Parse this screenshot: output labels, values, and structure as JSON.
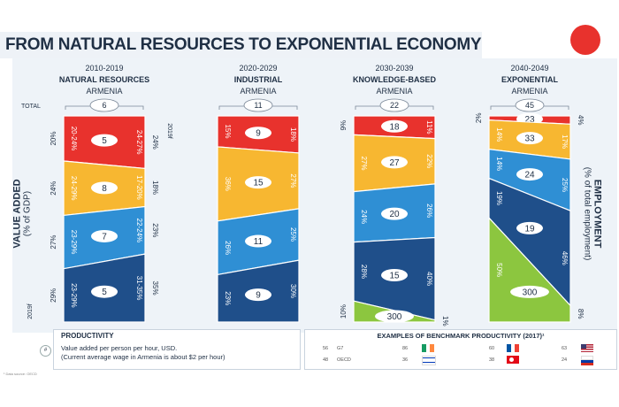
{
  "title": "FROM NATURAL RESOURCES TO EXPONENTIAL ECONOMY",
  "left_axis": {
    "title": "VALUE ADDED",
    "subtitle": "(% of GDP)",
    "year_bottom": "2019f"
  },
  "right_axis": {
    "title": "EMPLOYMENT",
    "subtitle": "(% of total employment)"
  },
  "total_label": "TOTAL",
  "chart_data": {
    "type": "bar",
    "colors": {
      "red": "#e8322d",
      "yellow": "#f7b731",
      "lightblue": "#2f8fd4",
      "darkblue": "#1f4f8a",
      "green": "#8cc63f"
    },
    "columns": [
      {
        "period": "2010-2019",
        "name": "NATURAL RESOURCES",
        "country": "ARMENIA",
        "total": "6",
        "right_year": "2019f",
        "segments": [
          {
            "color": "red",
            "productivity": "5",
            "left_pct": "20%",
            "inner_left": "20-24%",
            "inner_right": "24-27%",
            "right_pct": "24%"
          },
          {
            "color": "yellow",
            "productivity": "8",
            "left_pct": "24%",
            "inner_left": "24-29%",
            "inner_right": "17-20%",
            "right_pct": "18%"
          },
          {
            "color": "lightblue",
            "productivity": "7",
            "left_pct": "27%",
            "inner_left": "23-29%",
            "inner_right": "22-24%",
            "right_pct": "23%"
          },
          {
            "color": "darkblue",
            "productivity": "5",
            "left_pct": "29%",
            "inner_left": "23-29%",
            "inner_right": "31-35%",
            "right_pct": "35%"
          }
        ]
      },
      {
        "period": "2020-2029",
        "name": "INDUSTRIAL",
        "country": "ARMENIA",
        "total": "11",
        "segments": [
          {
            "color": "red",
            "productivity": "9",
            "inner_left": "15%",
            "inner_right": "18%"
          },
          {
            "color": "yellow",
            "productivity": "15",
            "inner_left": "36%",
            "inner_right": "27%"
          },
          {
            "color": "lightblue",
            "productivity": "11",
            "inner_left": "26%",
            "inner_right": "25%"
          },
          {
            "color": "darkblue",
            "productivity": "9",
            "inner_left": "23%",
            "inner_right": "30%"
          }
        ]
      },
      {
        "period": "2030-2039",
        "name": "KNOWLEDGE-BASED",
        "country": "ARMENIA",
        "total": "22",
        "segments": [
          {
            "color": "red",
            "productivity": "18",
            "left_pct": "9%",
            "inner_right": "11%"
          },
          {
            "color": "yellow",
            "productivity": "27",
            "inner_left": "27%",
            "inner_right": "22%"
          },
          {
            "color": "lightblue",
            "productivity": "20",
            "inner_left": "24%",
            "inner_right": "26%"
          },
          {
            "color": "darkblue",
            "productivity": "15",
            "inner_left": "28%",
            "inner_right": "40%"
          },
          {
            "color": "green",
            "productivity": "300",
            "left_pct": "10%",
            "right_pct": "1%"
          }
        ]
      },
      {
        "period": "2040-2049",
        "name": "EXPONENTIAL",
        "country": "ARMENIA",
        "total": "45",
        "segments": [
          {
            "color": "red",
            "productivity": "23",
            "left_pct": "2%",
            "right_pct": "4%"
          },
          {
            "color": "yellow",
            "productivity": "33",
            "inner_left": "14%",
            "inner_right": "17%"
          },
          {
            "color": "lightblue",
            "productivity": "24",
            "inner_left": "14%",
            "inner_right": "25%"
          },
          {
            "color": "darkblue",
            "productivity": "19",
            "inner_left": "19%",
            "inner_right": "46%"
          },
          {
            "color": "green",
            "productivity": "300",
            "inner_left": "50%",
            "right_pct": "8%"
          }
        ]
      }
    ]
  },
  "productivity": {
    "title": "PRODUCTIVITY",
    "marker": "#",
    "line1": "Value added per person per hour, USD.",
    "line2": "(Current average wage in Armenia is about $2 per hour)"
  },
  "benchmark": {
    "title": "EXAMPLES OF BENCHMARK PRODUCTIVITY (2017)¹",
    "items": [
      {
        "label": "G7",
        "value": "56",
        "flag_value": "86",
        "flag": "ireland"
      },
      {
        "label": "OECD",
        "value": "48",
        "flag_value": "36",
        "flag": "israel"
      },
      {
        "label": "",
        "value": "60",
        "flag": "france"
      },
      {
        "label": "",
        "value": "38",
        "flag": "turkey"
      },
      {
        "label": "",
        "value": "63",
        "flag": "usa"
      },
      {
        "label": "",
        "value": "24",
        "flag": "russia"
      }
    ]
  },
  "source": "¹ Data source: OECD"
}
